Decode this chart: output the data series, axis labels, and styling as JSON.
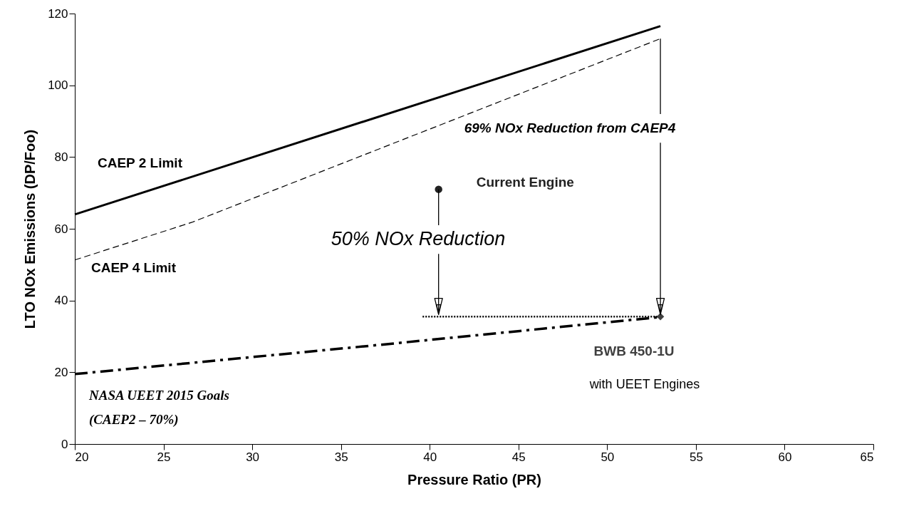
{
  "chart_data": {
    "type": "line",
    "xlabel": "Pressure Ratio (PR)",
    "ylabel": "LTO NOx Emissions (DP/Foo)",
    "xlim": [
      20,
      65
    ],
    "ylim": [
      0,
      120
    ],
    "xticks": [
      20,
      25,
      30,
      35,
      40,
      45,
      50,
      55,
      60,
      65
    ],
    "yticks": [
      0,
      20,
      40,
      60,
      80,
      100,
      120
    ],
    "grid": false,
    "series": [
      {
        "name": "CAEP 2 Limit",
        "line_style": "solid",
        "color": "#000000",
        "x": [
          20,
          53
        ],
        "values": [
          64,
          116.5
        ]
      },
      {
        "name": "CAEP 4 Limit",
        "line_style": "dashed",
        "color": "#000000",
        "x": [
          20,
          26.6,
          53
        ],
        "values": [
          51.3,
          61.8,
          113
        ]
      },
      {
        "name": "NASA UEET 2015 Goals\n(CAEP2 – 70%)",
        "line_style": "dashdot",
        "color": "#000000",
        "x": [
          20,
          37.1,
          53
        ],
        "values": [
          19.5,
          27.6,
          35.4
        ]
      },
      {
        "line_style": "dotted",
        "color": "#000000",
        "x": [
          39.6,
          53
        ],
        "values": [
          35.5,
          35.5
        ]
      },
      {
        "name": "Current Engine",
        "type": "scatter",
        "marker": "circle",
        "color": "#222222",
        "x": [
          40.5
        ],
        "values": [
          71
        ]
      },
      {
        "name": "BWB 450-1U",
        "type": "scatter",
        "marker": "diamond",
        "color": "#404040",
        "x": [
          53
        ],
        "values": [
          35.5
        ]
      }
    ],
    "annotations": [
      {
        "text": "50% NOx Reduction",
        "x": 40.5,
        "y": 35.5
      },
      {
        "text": "69% NOx Reduction from CAEP4",
        "x": 53,
        "y": 35.5
      },
      "with UEET Engines"
    ]
  }
}
